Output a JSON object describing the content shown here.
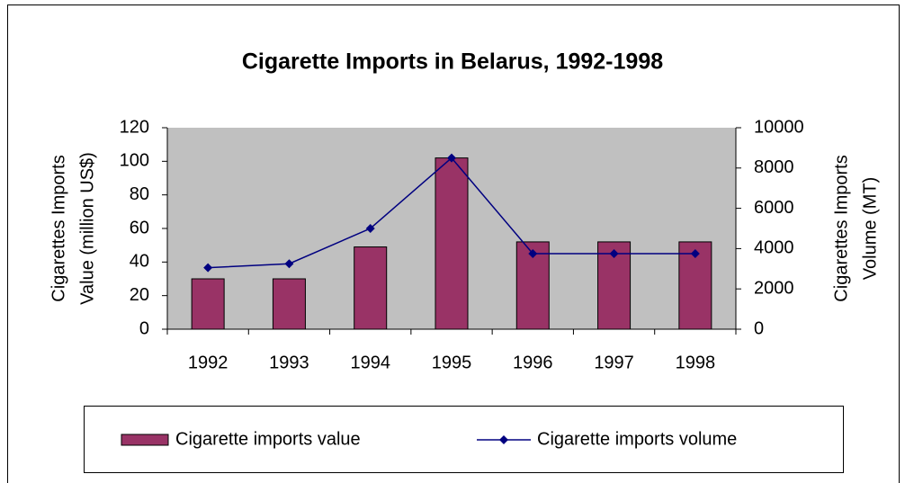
{
  "chart_data": {
    "type": "bar_line",
    "title": "Cigarette Imports in Belarus, 1992-1998",
    "y_label": [
      "Cigarettes Imports",
      "Value (million US$)"
    ],
    "y2_label": [
      "Cigarettes Imports",
      "Volume (MT)"
    ],
    "categories": [
      "1992",
      "1993",
      "1994",
      "1995",
      "1996",
      "1997",
      "1998"
    ],
    "series": [
      {
        "name": "Cigarette imports value",
        "type": "bar",
        "color": "#993366",
        "values": [
          30,
          30,
          49,
          102,
          52,
          52,
          52
        ]
      },
      {
        "name": "Cigarette imports volume",
        "type": "line",
        "axis": "y2",
        "color": "#000080",
        "values": [
          3050,
          3250,
          5000,
          8500,
          3750,
          3750,
          3750
        ]
      }
    ],
    "ylim": [
      0,
      120
    ],
    "yticks": [
      0,
      20,
      40,
      60,
      80,
      100,
      120
    ],
    "y2lim": [
      0,
      10000
    ],
    "y2ticks": [
      0,
      2000,
      4000,
      6000,
      8000,
      10000
    ],
    "grid": false,
    "plot_background": "#c0c0c0",
    "legend": "bottom"
  }
}
